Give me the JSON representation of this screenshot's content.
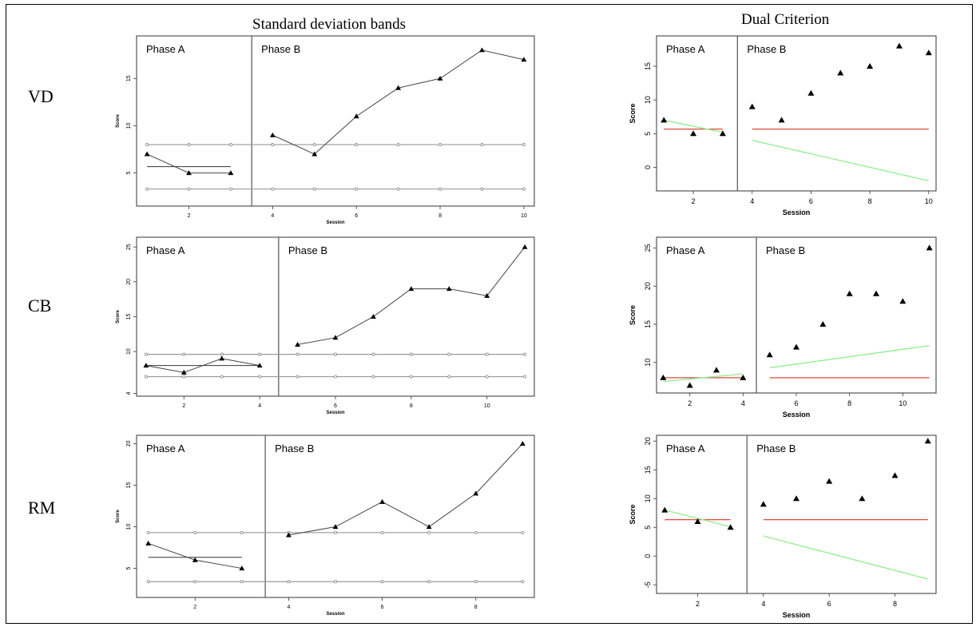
{
  "columns": {
    "sd_title": "Standard deviation bands",
    "dc_title": "Dual Criterion"
  },
  "rows": [
    {
      "label": "VD"
    },
    {
      "label": "CB"
    },
    {
      "label": "RM"
    }
  ],
  "colors": {
    "data": "#000000",
    "sd_band": "#9a9a9a",
    "red_line": "#e0483c",
    "green_line": "#90ee90",
    "frame": "#333333"
  },
  "chart_data": [
    {
      "id": "vd-sd",
      "type": "line",
      "method": "Standard deviation bands",
      "participant": "VD",
      "xlabel": "Session",
      "ylabel": "Score",
      "xlim": [
        0.75,
        10.25
      ],
      "ylim": [
        1.5,
        19.5
      ],
      "xticks": [
        2,
        4,
        6,
        8,
        10
      ],
      "yticks": [
        5,
        10,
        15
      ],
      "phase_a_label": "Phase A",
      "phase_b_label": "Phase B",
      "phase_change": 3.5,
      "phase_a": {
        "x": [
          1,
          2,
          3
        ],
        "y": [
          7,
          5,
          5
        ]
      },
      "phase_b": {
        "x": [
          4,
          5,
          6,
          7,
          8,
          9,
          10
        ],
        "y": [
          9,
          7,
          11,
          14,
          15,
          18,
          17
        ]
      },
      "phase_a_mean": 5.67,
      "bands": [
        8,
        3.3
      ]
    },
    {
      "id": "cb-sd",
      "type": "line",
      "method": "Standard deviation bands",
      "participant": "CB",
      "xlabel": "Session",
      "ylabel": "Score",
      "xlim": [
        0.75,
        11.25
      ],
      "ylim": [
        3.6,
        26.4
      ],
      "xticks": [
        2,
        4,
        6,
        8,
        10
      ],
      "yticks": [
        4,
        10,
        15,
        20,
        25
      ],
      "phase_a_label": "Phase A",
      "phase_b_label": "Phase B",
      "phase_change": 4.5,
      "phase_a": {
        "x": [
          1,
          2,
          3,
          4
        ],
        "y": [
          8,
          7,
          9,
          8
        ]
      },
      "phase_b": {
        "x": [
          5,
          6,
          7,
          8,
          9,
          10,
          11
        ],
        "y": [
          11,
          12,
          15,
          19,
          19,
          18,
          25
        ]
      },
      "phase_a_mean": 8,
      "bands": [
        9.6,
        6.4
      ]
    },
    {
      "id": "rm-sd",
      "type": "line",
      "method": "Standard deviation bands",
      "participant": "RM",
      "xlabel": "Session",
      "ylabel": "Score",
      "xlim": [
        0.75,
        9.25
      ],
      "ylim": [
        1.5,
        21
      ],
      "xticks": [
        2,
        4,
        6,
        8
      ],
      "yticks": [
        5,
        10,
        15,
        20
      ],
      "phase_a_label": "Phase A",
      "phase_b_label": "Phase B",
      "phase_change": 3.5,
      "phase_a": {
        "x": [
          1,
          2,
          3
        ],
        "y": [
          8,
          6,
          5
        ]
      },
      "phase_b": {
        "x": [
          4,
          5,
          6,
          7,
          8,
          9
        ],
        "y": [
          9,
          10,
          13,
          10,
          14,
          20
        ]
      },
      "phase_a_mean": 6.33,
      "bands": [
        9.3,
        3.4
      ]
    },
    {
      "id": "vd-dc",
      "type": "scatter",
      "method": "Dual Criterion",
      "participant": "VD",
      "xlabel": "Session",
      "ylabel": "Score",
      "xlim": [
        0.75,
        10.25
      ],
      "ylim": [
        -3.5,
        19.5
      ],
      "xticks": [
        2,
        4,
        6,
        8,
        10
      ],
      "yticks": [
        0,
        5,
        10,
        15
      ],
      "phase_a_label": "Phase A",
      "phase_b_label": "Phase B",
      "phase_change": 3.5,
      "phase_a": {
        "x": [
          1,
          2,
          3
        ],
        "y": [
          7,
          5,
          5
        ]
      },
      "phase_b": {
        "x": [
          4,
          5,
          6,
          7,
          8,
          9,
          10
        ],
        "y": [
          9,
          7,
          11,
          14,
          15,
          18,
          17
        ]
      },
      "mean_line": {
        "x": [
          1,
          3
        ],
        "y": [
          5.67,
          5.67
        ]
      },
      "mean_ext": {
        "x": [
          4,
          10
        ],
        "y": [
          5.67,
          5.67
        ]
      },
      "trend_line": {
        "x": [
          1,
          3
        ],
        "y": [
          7,
          5.2
        ]
      },
      "trend_ext": {
        "x": [
          4,
          10
        ],
        "y": [
          4,
          -2
        ]
      }
    },
    {
      "id": "cb-dc",
      "type": "scatter",
      "method": "Dual Criterion",
      "participant": "CB",
      "xlabel": "Session",
      "ylabel": "Score",
      "xlim": [
        0.75,
        11.25
      ],
      "ylim": [
        6,
        26.4
      ],
      "xticks": [
        2,
        4,
        6,
        8,
        10
      ],
      "yticks": [
        10,
        15,
        20,
        25
      ],
      "phase_a_label": "Phase A",
      "phase_b_label": "Phase B",
      "phase_change": 4.5,
      "phase_a": {
        "x": [
          1,
          2,
          3,
          4
        ],
        "y": [
          8,
          7,
          9,
          8
        ]
      },
      "phase_b": {
        "x": [
          5,
          6,
          7,
          8,
          9,
          10,
          11
        ],
        "y": [
          11,
          12,
          15,
          19,
          19,
          18,
          25
        ]
      },
      "mean_line": {
        "x": [
          1,
          4
        ],
        "y": [
          8,
          8
        ]
      },
      "mean_ext": {
        "x": [
          5,
          11
        ],
        "y": [
          8,
          8
        ]
      },
      "trend_line": {
        "x": [
          1,
          4
        ],
        "y": [
          7.5,
          8.5
        ]
      },
      "trend_ext": {
        "x": [
          5,
          11
        ],
        "y": [
          9.3,
          12.2
        ]
      }
    },
    {
      "id": "rm-dc",
      "type": "scatter",
      "method": "Dual Criterion",
      "participant": "RM",
      "xlabel": "Session",
      "ylabel": "Score",
      "xlim": [
        0.75,
        9.25
      ],
      "ylim": [
        -6.5,
        21
      ],
      "xticks": [
        2,
        4,
        6,
        8
      ],
      "yticks": [
        -5,
        0,
        5,
        10,
        15,
        20
      ],
      "phase_a_label": "Phase A",
      "phase_b_label": "Phase B",
      "phase_change": 3.5,
      "phase_a": {
        "x": [
          1,
          2,
          3
        ],
        "y": [
          8,
          6,
          5
        ]
      },
      "phase_b": {
        "x": [
          4,
          5,
          6,
          7,
          8,
          9
        ],
        "y": [
          9,
          10,
          13,
          10,
          14,
          20
        ]
      },
      "mean_line": {
        "x": [
          1,
          3
        ],
        "y": [
          6.33,
          6.33
        ]
      },
      "mean_ext": {
        "x": [
          4,
          9
        ],
        "y": [
          6.33,
          6.33
        ]
      },
      "trend_line": {
        "x": [
          1,
          3
        ],
        "y": [
          8,
          5.1
        ]
      },
      "trend_ext": {
        "x": [
          4,
          9
        ],
        "y": [
          3.5,
          -4
        ]
      }
    }
  ]
}
